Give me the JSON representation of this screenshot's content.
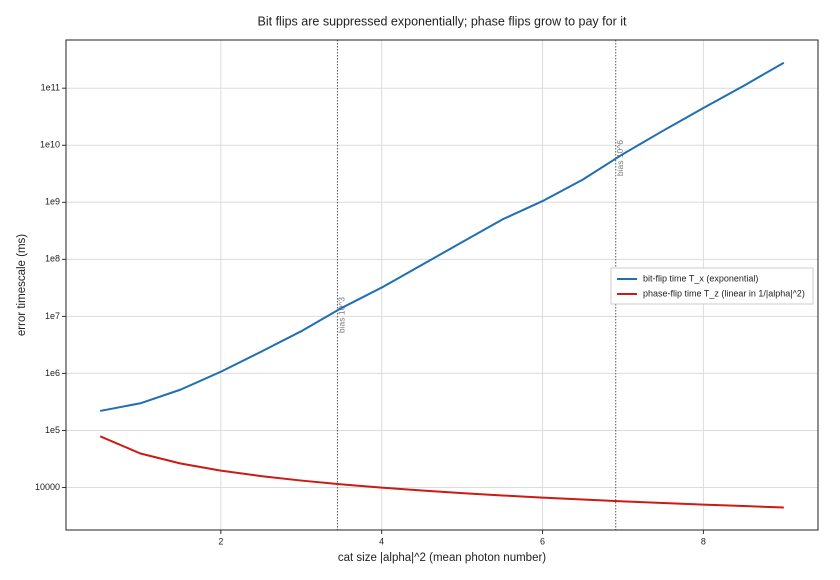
{
  "chart_data": {
    "type": "line",
    "title": "Bit flips are suppressed exponentially; phase flips grow to pay for it",
    "x_label": "cat size |alpha|^2 (mean photon number)",
    "y_label": "error timescale (ms)",
    "log_y": true,
    "grid": true,
    "legend_position": "right",
    "xlim": [
      0.075,
      9.425
    ],
    "xticks": [
      2,
      4,
      6,
      8
    ],
    "ylim": [
      1800,
      700000000000
    ],
    "yticks": [
      10000,
      {
        "value": 100000,
        "label": "1e5"
      },
      {
        "value": 1000000,
        "label": "1e6"
      },
      {
        "value": 10000000,
        "label": "1e7"
      },
      {
        "value": 100000000,
        "label": "1e8"
      },
      {
        "value": 1000000000,
        "label": "1e9"
      },
      {
        "value": 10000000000,
        "label": "1e10"
      },
      {
        "value": 100000000000,
        "label": "1e11"
      }
    ],
    "x": [
      0.5,
      1,
      1.5,
      2,
      2.5,
      3,
      3.5,
      4,
      4.5,
      5,
      5.5,
      6,
      6.5,
      7,
      7.5,
      8,
      8.5,
      9
    ],
    "series": [
      {
        "name": "bit-flip time T_x (exponential)",
        "color": "#1f6fb2",
        "values": [
          220000,
          300000,
          520000,
          1070000,
          2400000,
          5500000,
          14000000,
          32000000,
          80000000,
          200000000,
          500000000,
          1050000000,
          2500000000,
          7000000000,
          18000000000,
          45000000000,
          110000000000,
          280000000000
        ]
      },
      {
        "name": "phase-flip time T_z (linear in 1/|alpha|^2)",
        "color": "#cc1a14",
        "values": [
          79000,
          39500,
          26390,
          19800,
          15870,
          13240,
          11360,
          9950,
          8850,
          7980,
          7260,
          6660,
          6160,
          5720,
          5350,
          5020,
          4730,
          4470
        ]
      }
    ],
    "annotations": [
      {
        "x": 3.45,
        "label": "bias 10^3"
      },
      {
        "x": 6.91,
        "label": "bias 10^6"
      }
    ]
  }
}
